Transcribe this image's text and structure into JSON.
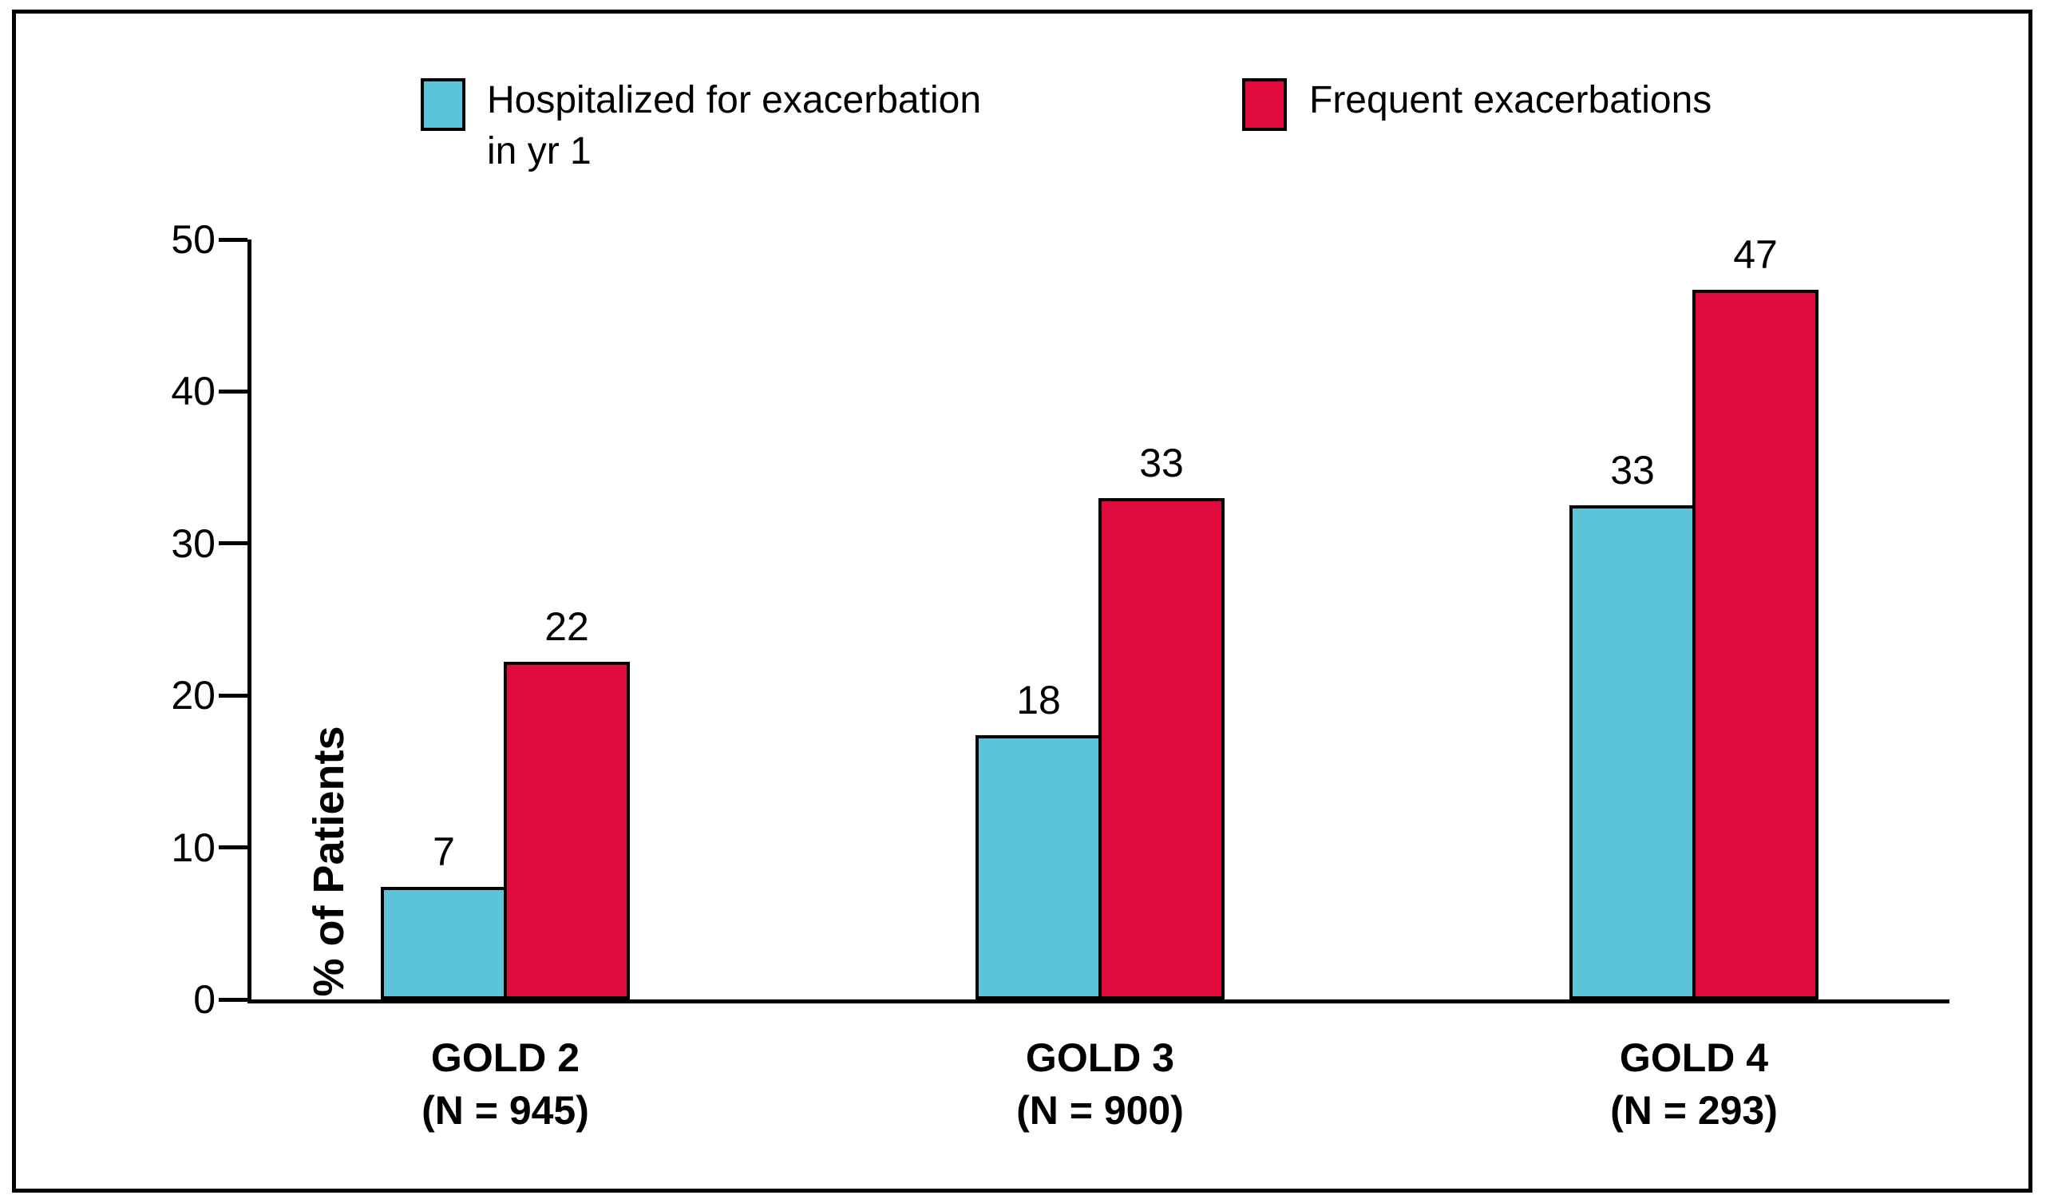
{
  "chart_data": {
    "type": "bar",
    "title": "",
    "ylabel": "% of Patients",
    "xlabel": "",
    "ylim": [
      0,
      50
    ],
    "yticks": [
      0,
      10,
      20,
      30,
      40,
      50
    ],
    "grid": false,
    "legend_position": "top",
    "categories": [
      {
        "key": "gold2",
        "lines": [
          "GOLD 2",
          "(N = 945)"
        ]
      },
      {
        "key": "gold3",
        "lines": [
          "GOLD 3",
          "(N = 900)"
        ]
      },
      {
        "key": "gold4",
        "lines": [
          "GOLD 4",
          "(N = 293)"
        ]
      }
    ],
    "series": [
      {
        "key": "hospitalized",
        "name": "Hospitalized for exacerbation in yr 1",
        "color": "#5BC4D9",
        "values": [
          7,
          18,
          33
        ],
        "drawn_values": [
          7.4,
          17.4,
          32.5
        ]
      },
      {
        "key": "frequent",
        "name": "Frequent exacerbations",
        "color": "#E00A3C",
        "values": [
          22,
          33,
          47
        ],
        "drawn_values": [
          22.2,
          33.0,
          46.7
        ]
      }
    ]
  },
  "legend": {
    "items": [
      {
        "key": "hospitalized",
        "color": "#5BC4D9",
        "lines": [
          "Hospitalized for exacerbation",
          "in yr 1"
        ]
      },
      {
        "key": "frequent",
        "color": "#E00A3C",
        "lines": [
          "Frequent exacerbations"
        ]
      }
    ]
  },
  "colors": {
    "background": "#FFFFFF",
    "frame": "#000000",
    "axis": "#000000",
    "text": "#000000"
  }
}
